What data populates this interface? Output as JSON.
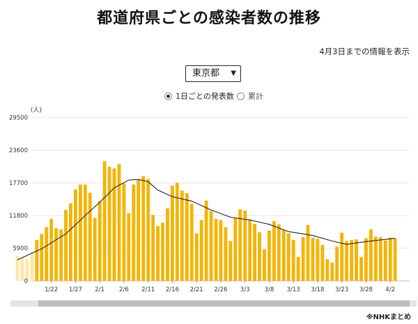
{
  "title": "都道府県ごとの感染者数の推移",
  "date_note": "4月3日までの情報を表示",
  "prefecture_select": {
    "selected": "東京都"
  },
  "view_toggle": {
    "options": [
      {
        "label": "1日ごとの発表数",
        "selected": true
      },
      {
        "label": "累計",
        "selected": false
      }
    ]
  },
  "source_note": "※NHKまとめ",
  "colors": {
    "bar": "#f5b400",
    "bar_faded": "#fbe7a6",
    "line": "#222222",
    "grid": "#e6e6e6"
  },
  "chart_data": {
    "type": "bar",
    "unit": "(人)",
    "ylim": [
      0,
      29500
    ],
    "y_ticks": [
      "29500",
      "23600",
      "17700",
      "11800",
      "5900",
      "0"
    ],
    "y_tick_values": [
      29500,
      23600,
      17700,
      11800,
      5900,
      0
    ],
    "x_tick_labels": [
      "1/22",
      "1/27",
      "2/1",
      "2/6",
      "2/11",
      "2/16",
      "2/21",
      "2/26",
      "3/3",
      "3/8",
      "3/13",
      "3/18",
      "3/23",
      "3/28",
      "4/2"
    ],
    "x_tick_dates": [
      "2022-01-22",
      "2022-01-27",
      "2022-02-01",
      "2022-02-06",
      "2022-02-11",
      "2022-02-16",
      "2022-02-21",
      "2022-02-26",
      "2022-03-03",
      "2022-03-08",
      "2022-03-13",
      "2022-03-18",
      "2022-03-23",
      "2022-03-28",
      "2022-04-02"
    ],
    "grid": true,
    "series": [
      {
        "values": [
          [
            "2022-01-15",
            4500
          ],
          [
            "2022-01-16",
            4200
          ],
          [
            "2022-01-17",
            3900
          ],
          [
            "2022-01-18",
            5200
          ],
          [
            "2022-01-19",
            7400
          ],
          [
            "2022-01-20",
            8500
          ],
          [
            "2022-01-21",
            9700
          ],
          [
            "2022-01-22",
            11200
          ],
          [
            "2022-01-23",
            9500
          ],
          [
            "2022-01-24",
            9300
          ],
          [
            "2022-01-25",
            12800
          ],
          [
            "2022-01-26",
            14000
          ],
          [
            "2022-01-27",
            16500
          ],
          [
            "2022-01-28",
            17400
          ],
          [
            "2022-01-29",
            17400
          ],
          [
            "2022-01-30",
            15900
          ],
          [
            "2022-01-31",
            11400
          ],
          [
            "2022-02-01",
            14400
          ],
          [
            "2022-02-02",
            21600
          ],
          [
            "2022-02-03",
            20600
          ],
          [
            "2022-02-04",
            20300
          ],
          [
            "2022-02-05",
            21100
          ],
          [
            "2022-02-06",
            17600
          ],
          [
            "2022-02-07",
            12200
          ],
          [
            "2022-02-08",
            17400
          ],
          [
            "2022-02-09",
            18300
          ],
          [
            "2022-02-10",
            18900
          ],
          [
            "2022-02-11",
            18400
          ],
          [
            "2022-02-12",
            11900
          ],
          [
            "2022-02-13",
            9900
          ],
          [
            "2022-02-14",
            10500
          ],
          [
            "2022-02-15",
            13100
          ],
          [
            "2022-02-16",
            17200
          ],
          [
            "2022-02-17",
            17700
          ],
          [
            "2022-02-18",
            16300
          ],
          [
            "2022-02-19",
            15800
          ],
          [
            "2022-02-20",
            13900
          ],
          [
            "2022-02-21",
            8600
          ],
          [
            "2022-02-22",
            11000
          ],
          [
            "2022-02-23",
            14500
          ],
          [
            "2022-02-24",
            12600
          ],
          [
            "2022-02-25",
            11200
          ],
          [
            "2022-02-26",
            11000
          ],
          [
            "2022-02-27",
            9700
          ],
          [
            "2022-02-28",
            7200
          ],
          [
            "2022-03-01",
            11400
          ],
          [
            "2022-03-02",
            12900
          ],
          [
            "2022-03-03",
            12700
          ],
          [
            "2022-03-04",
            11100
          ],
          [
            "2022-03-05",
            10300
          ],
          [
            "2022-03-06",
            8800
          ],
          [
            "2022-03-07",
            5700
          ],
          [
            "2022-03-08",
            9100
          ],
          [
            "2022-03-09",
            10800
          ],
          [
            "2022-03-10",
            10200
          ],
          [
            "2022-03-11",
            9200
          ],
          [
            "2022-03-12",
            8600
          ],
          [
            "2022-03-13",
            7400
          ],
          [
            "2022-03-14",
            4300
          ],
          [
            "2022-03-15",
            7900
          ],
          [
            "2022-03-16",
            10100
          ],
          [
            "2022-03-17",
            7800
          ],
          [
            "2022-03-18",
            7600
          ],
          [
            "2022-03-19",
            6500
          ],
          [
            "2022-03-20",
            3900
          ],
          [
            "2022-03-21",
            3300
          ],
          [
            "2022-03-22",
            6200
          ],
          [
            "2022-03-23",
            8700
          ],
          [
            "2022-03-24",
            7200
          ],
          [
            "2022-03-25",
            7400
          ],
          [
            "2022-03-26",
            7500
          ],
          [
            "2022-03-27",
            4300
          ],
          [
            "2022-03-28",
            7700
          ],
          [
            "2022-03-29",
            9300
          ],
          [
            "2022-03-30",
            8000
          ],
          [
            "2022-03-31",
            7900
          ],
          [
            "2022-04-01",
            7300
          ],
          [
            "2022-04-02",
            7800
          ],
          [
            "2022-04-03",
            7700
          ]
        ]
      },
      {
        "type": "line",
        "values": [
          [
            "2022-01-15",
            3800
          ],
          [
            "2022-01-20",
            5800
          ],
          [
            "2022-01-25",
            8500
          ],
          [
            "2022-01-29",
            11800
          ],
          [
            "2022-02-01",
            14200
          ],
          [
            "2022-02-04",
            16800
          ],
          [
            "2022-02-07",
            18200
          ],
          [
            "2022-02-09",
            18300
          ],
          [
            "2022-02-11",
            17900
          ],
          [
            "2022-02-13",
            16400
          ],
          [
            "2022-02-16",
            15200
          ],
          [
            "2022-02-20",
            14400
          ],
          [
            "2022-02-24",
            12800
          ],
          [
            "2022-02-28",
            11500
          ],
          [
            "2022-03-04",
            11000
          ],
          [
            "2022-03-08",
            10200
          ],
          [
            "2022-03-12",
            8900
          ],
          [
            "2022-03-17",
            8200
          ],
          [
            "2022-03-21",
            7200
          ],
          [
            "2022-03-24",
            6600
          ],
          [
            "2022-03-28",
            7100
          ],
          [
            "2022-04-03",
            7700
          ]
        ]
      }
    ]
  }
}
